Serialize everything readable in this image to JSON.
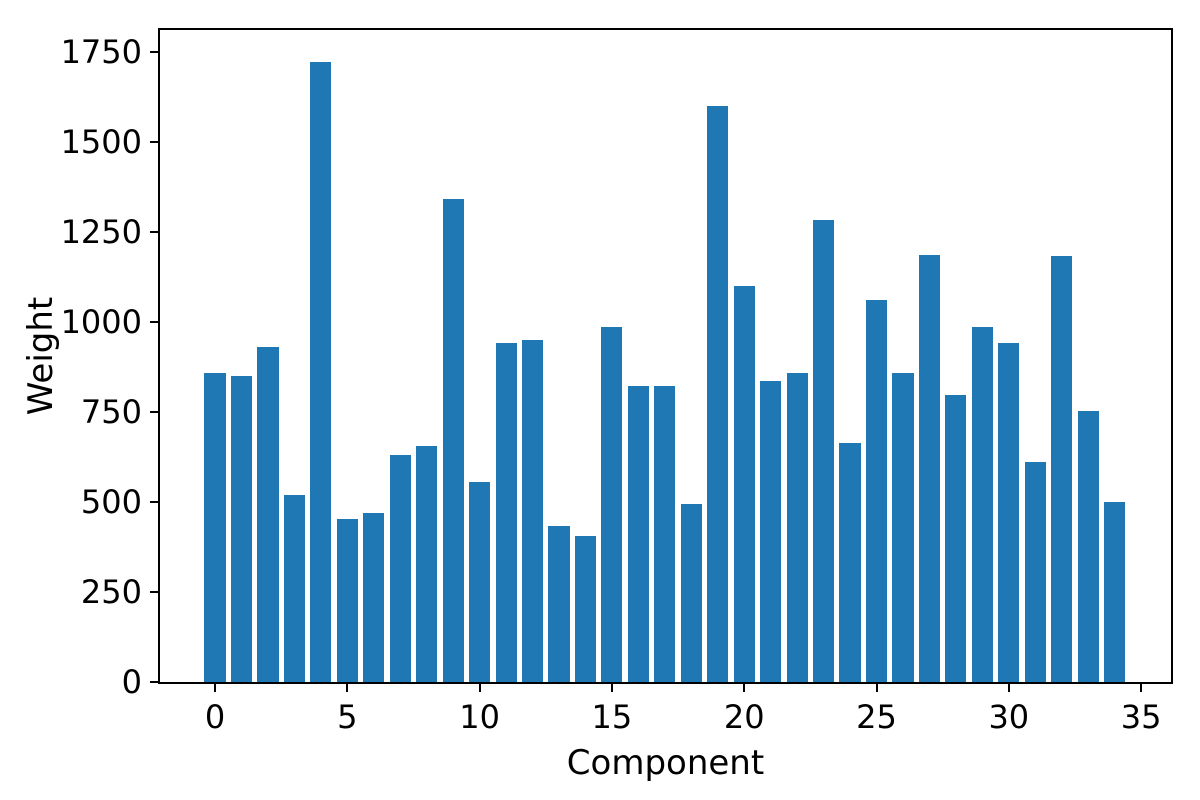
{
  "chart_data": {
    "type": "bar",
    "title": "",
    "xlabel": "Component",
    "ylabel": "Weight",
    "bar_color": "#1f77b4",
    "background_color": "#ffffff",
    "axis_color": "#000000",
    "grid": false,
    "legend_position": "none",
    "bar_width_data_units": 0.8,
    "categories": [
      0,
      1,
      2,
      3,
      4,
      5,
      6,
      7,
      8,
      9,
      10,
      11,
      12,
      13,
      14,
      15,
      16,
      17,
      18,
      19,
      20,
      21,
      22,
      23,
      24,
      25,
      26,
      27,
      28,
      29,
      30,
      31,
      32,
      33,
      34
    ],
    "values": [
      860,
      851,
      930,
      519,
      1722,
      452,
      470,
      630,
      656,
      1343,
      555,
      941,
      950,
      434,
      406,
      988,
      822,
      822,
      494,
      1601,
      1101,
      837,
      860,
      1284,
      665,
      1061,
      860,
      1186,
      797,
      987,
      943,
      612,
      1185,
      753,
      501
    ],
    "xticks": [
      0,
      5,
      10,
      15,
      20,
      25,
      30,
      35
    ],
    "yticks": [
      0,
      250,
      500,
      750,
      1000,
      1250,
      1500,
      1750
    ],
    "xlim": [
      -2.08,
      36.13
    ],
    "ylim": [
      0,
      1812
    ]
  }
}
